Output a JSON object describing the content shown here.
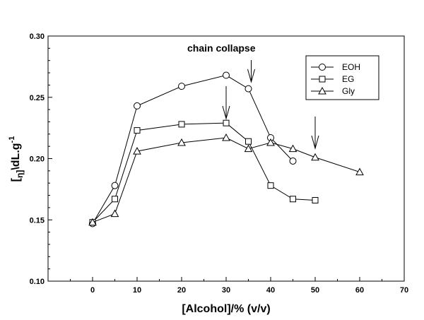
{
  "chart_data": {
    "type": "line",
    "xlabel": "[Alcohol]/% (v/v)",
    "ylabel": {
      "main": "[",
      "sub": "η]",
      "unit": "\\dL.g",
      "exp": "-1"
    },
    "xlim": [
      -10,
      70
    ],
    "ylim": [
      0.1,
      0.3
    ],
    "x_ticks": [
      "0",
      "10",
      "20",
      "30",
      "40",
      "50",
      "60",
      "70"
    ],
    "y_ticks": [
      "0.10",
      "0.15",
      "0.20",
      "0.25",
      "0.30"
    ],
    "grid": false,
    "legend_position": "top-right",
    "annotation": "chain collapse",
    "arrows_at_x": [
      30,
      35,
      50
    ],
    "series": [
      {
        "name": "EOH",
        "marker": "circle",
        "x": [
          0,
          5,
          10,
          20,
          30,
          35,
          40,
          45
        ],
        "y": [
          0.147,
          0.178,
          0.243,
          0.259,
          0.268,
          0.257,
          0.217,
          0.198
        ]
      },
      {
        "name": "EG",
        "marker": "square",
        "x": [
          0,
          5,
          10,
          20,
          30,
          35,
          40,
          45,
          50
        ],
        "y": [
          0.148,
          0.167,
          0.223,
          0.228,
          0.229,
          0.214,
          0.178,
          0.167,
          0.166
        ]
      },
      {
        "name": "Gly",
        "marker": "triangle",
        "x": [
          0,
          5,
          10,
          20,
          30,
          35,
          40,
          45,
          50,
          60
        ],
        "y": [
          0.148,
          0.155,
          0.206,
          0.213,
          0.217,
          0.208,
          0.213,
          0.208,
          0.201,
          0.189
        ]
      }
    ]
  }
}
